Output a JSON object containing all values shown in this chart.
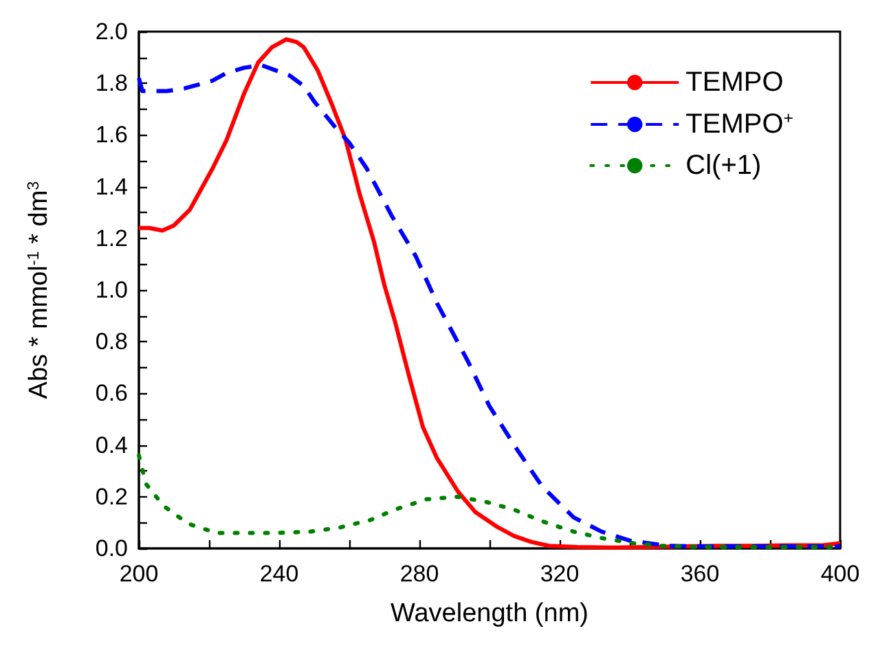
{
  "chart_data": {
    "type": "line",
    "xlabel": "Wavelength (nm)",
    "ylabel": "Abs * mmol$^{-1}$ * dm$^{3}$",
    "xlim": [
      200,
      400
    ],
    "xticks": [
      200,
      {
        "value": 220,
        "label": null
      },
      240,
      {
        "value": 260,
        "label": null
      },
      280,
      {
        "value": 300,
        "label": null
      },
      320,
      {
        "value": 340,
        "label": null
      },
      360,
      {
        "value": 380,
        "label": null
      },
      400
    ],
    "ylim": [
      0,
      2.0
    ],
    "yticks": [
      {
        "value": 0,
        "label": "0.0"
      },
      {
        "value": 0.1,
        "label": null
      },
      {
        "value": 0.2,
        "label": "0.2"
      },
      {
        "value": 0.3,
        "label": null
      },
      {
        "value": 0.4,
        "label": "0.4"
      },
      {
        "value": 0.5,
        "label": null
      },
      {
        "value": 0.6,
        "label": "0.6"
      },
      {
        "value": 0.7,
        "label": null
      },
      {
        "value": 0.8,
        "label": "0.8"
      },
      {
        "value": 0.9,
        "label": null
      },
      {
        "value": 1.0,
        "label": "1.0"
      },
      {
        "value": 1.1,
        "label": null
      },
      {
        "value": 1.2,
        "label": "1.2"
      },
      {
        "value": 1.3,
        "label": null
      },
      {
        "value": 1.4,
        "label": "1.4"
      },
      {
        "value": 1.5,
        "label": null
      },
      {
        "value": 1.6,
        "label": "1.6"
      },
      {
        "value": 1.7,
        "label": null
      },
      {
        "value": 1.8,
        "label": "1.8"
      },
      {
        "value": 1.9,
        "label": null
      },
      {
        "value": 2.0,
        "label": "2.0"
      }
    ],
    "grid": false,
    "legend": "top right",
    "marker": "none",
    "series": [
      {
        "name": "TEMPO",
        "color": "#ff0000",
        "line_style": "solid",
        "x": [
          200,
          203,
          206.7,
          210,
          214.5,
          221,
          225,
          230,
          234,
          238,
          242,
          245,
          247,
          251,
          255,
          259,
          263,
          267,
          270,
          273,
          277,
          281,
          285,
          291,
          296,
          302,
          307,
          312,
          317,
          325,
          335,
          345,
          355,
          365,
          375,
          385,
          395,
          400
        ],
        "values": [
          1.24,
          1.24,
          1.23,
          1.25,
          1.31,
          1.47,
          1.58,
          1.76,
          1.88,
          1.94,
          1.97,
          1.96,
          1.94,
          1.85,
          1.72,
          1.58,
          1.37,
          1.19,
          1.02,
          0.88,
          0.67,
          0.47,
          0.35,
          0.22,
          0.14,
          0.085,
          0.048,
          0.025,
          0.01,
          0.005,
          0.003,
          0.005,
          0.008,
          0.01,
          0.01,
          0.012,
          0.012,
          0.02
        ]
      },
      {
        "name": "TEMPO$^{+}$",
        "color": "#0000ff",
        "line_style": "dashed",
        "x": [
          200,
          201,
          208,
          213,
          221,
          225,
          230,
          235,
          239,
          243,
          247,
          250,
          256,
          260,
          265,
          272,
          279,
          285,
          294,
          300,
          308,
          315,
          324,
          332,
          340,
          351,
          360,
          380,
          400
        ],
        "values": [
          1.82,
          1.77,
          1.77,
          1.78,
          1.81,
          1.84,
          1.86,
          1.87,
          1.85,
          1.83,
          1.79,
          1.73,
          1.63,
          1.57,
          1.47,
          1.29,
          1.13,
          0.95,
          0.72,
          0.55,
          0.38,
          0.24,
          0.12,
          0.065,
          0.03,
          0.01,
          0.008,
          0.008,
          0.008
        ]
      },
      {
        "name": "Cl(+1)",
        "color": "#008000",
        "line_style": "dotted",
        "x": [
          200,
          202,
          207,
          214,
          222,
          231,
          239,
          249,
          257,
          266,
          273,
          282,
          291,
          299,
          307,
          315,
          324,
          332,
          341,
          349,
          360,
          380,
          400
        ],
        "values": [
          0.36,
          0.25,
          0.165,
          0.096,
          0.06,
          0.06,
          0.06,
          0.065,
          0.08,
          0.11,
          0.15,
          0.19,
          0.2,
          0.18,
          0.15,
          0.105,
          0.065,
          0.04,
          0.02,
          0.01,
          0.006,
          0.005,
          0.005
        ]
      }
    ]
  }
}
